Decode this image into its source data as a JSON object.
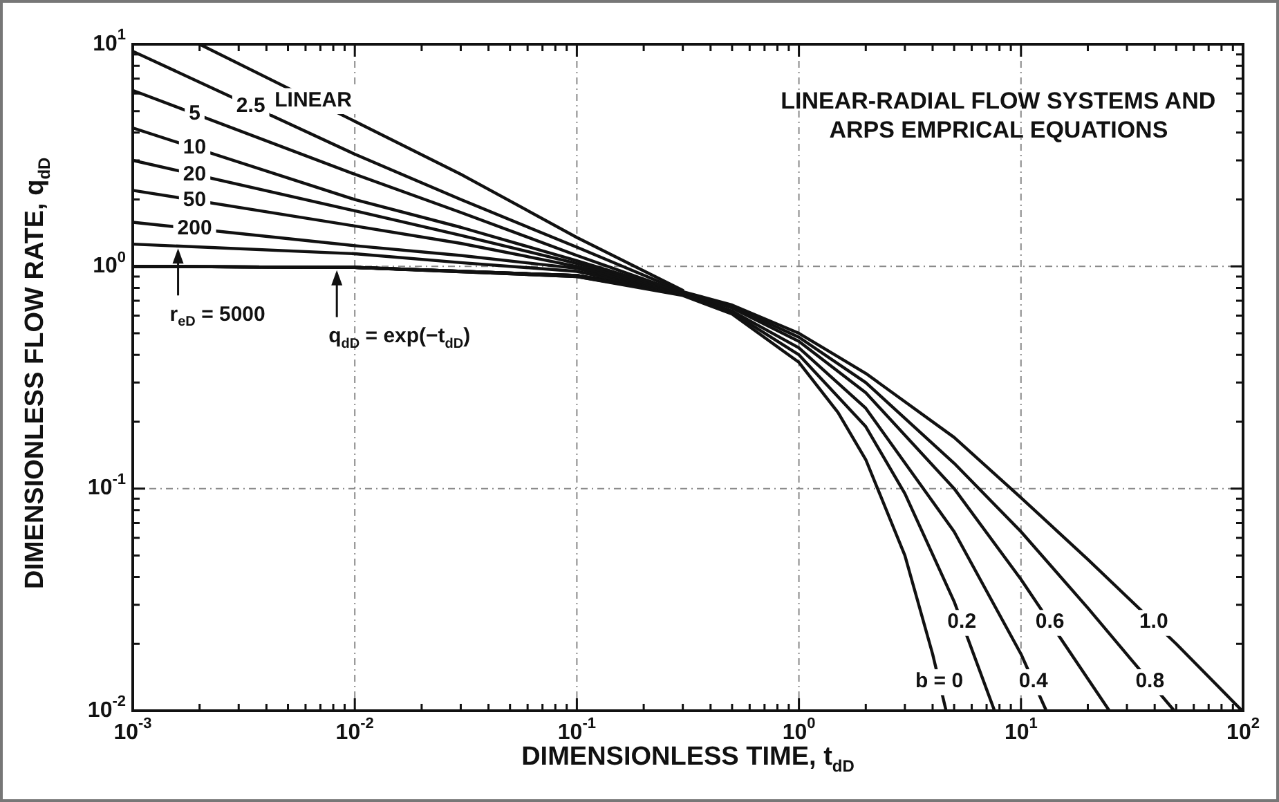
{
  "chart_data": {
    "type": "line",
    "title": "LINEAR-RADIAL FLOW SYSTEMS AND ARPS EMPRICAL EQUATIONS",
    "xlabel": "DIMENSIONLESS TIME, t$_{dD}$",
    "ylabel": "DIMENSIONLESS FLOW RATE, q$_{dD}$",
    "log": "xy",
    "grid": true,
    "legend": false,
    "marker": "none",
    "line_style": "solid",
    "xlim": [
      0.001,
      100
    ],
    "ylim": [
      0.01,
      10
    ],
    "xticks": [
      {
        "value": 0.001,
        "label": "10$^{-3}$"
      },
      {
        "value": 0.002,
        "label": null
      },
      {
        "value": 0.003,
        "label": null
      },
      {
        "value": 0.004,
        "label": null
      },
      {
        "value": 0.005,
        "label": null
      },
      {
        "value": 0.006,
        "label": null
      },
      {
        "value": 0.007,
        "label": null
      },
      {
        "value": 0.008,
        "label": null
      },
      {
        "value": 0.009,
        "label": null
      },
      {
        "value": 0.01,
        "label": "10$^{-2}$"
      },
      {
        "value": 0.02,
        "label": null
      },
      {
        "value": 0.03,
        "label": null
      },
      {
        "value": 0.04,
        "label": null
      },
      {
        "value": 0.05,
        "label": null
      },
      {
        "value": 0.06,
        "label": null
      },
      {
        "value": 0.07,
        "label": null
      },
      {
        "value": 0.08,
        "label": null
      },
      {
        "value": 0.09,
        "label": null
      },
      {
        "value": 0.1,
        "label": "10$^{-1}$"
      },
      {
        "value": 0.2,
        "label": null
      },
      {
        "value": 0.3,
        "label": null
      },
      {
        "value": 0.4,
        "label": null
      },
      {
        "value": 0.5,
        "label": null
      },
      {
        "value": 0.6,
        "label": null
      },
      {
        "value": 0.7,
        "label": null
      },
      {
        "value": 0.8,
        "label": null
      },
      {
        "value": 0.9,
        "label": null
      },
      {
        "value": 1,
        "label": "10$^{0}$"
      },
      {
        "value": 2,
        "label": null
      },
      {
        "value": 3,
        "label": null
      },
      {
        "value": 4,
        "label": null
      },
      {
        "value": 5,
        "label": null
      },
      {
        "value": 6,
        "label": null
      },
      {
        "value": 7,
        "label": null
      },
      {
        "value": 8,
        "label": null
      },
      {
        "value": 9,
        "label": null
      },
      {
        "value": 10,
        "label": "10$^{1}$"
      },
      {
        "value": 20,
        "label": null
      },
      {
        "value": 30,
        "label": null
      },
      {
        "value": 40,
        "label": null
      },
      {
        "value": 50,
        "label": null
      },
      {
        "value": 60,
        "label": null
      },
      {
        "value": 70,
        "label": null
      },
      {
        "value": 80,
        "label": null
      },
      {
        "value": 90,
        "label": null
      },
      {
        "value": 100,
        "label": "10$^{2}$"
      }
    ],
    "yticks": [
      {
        "value": 0.01,
        "label": "10$^{-2}$"
      },
      {
        "value": 0.02,
        "label": null
      },
      {
        "value": 0.03,
        "label": null
      },
      {
        "value": 0.04,
        "label": null
      },
      {
        "value": 0.05,
        "label": null
      },
      {
        "value": 0.06,
        "label": null
      },
      {
        "value": 0.07,
        "label": null
      },
      {
        "value": 0.08,
        "label": null
      },
      {
        "value": 0.09,
        "label": null
      },
      {
        "value": 0.1,
        "label": "10$^{-1}$"
      },
      {
        "value": 0.2,
        "label": null
      },
      {
        "value": 0.3,
        "label": null
      },
      {
        "value": 0.4,
        "label": null
      },
      {
        "value": 0.5,
        "label": null
      },
      {
        "value": 0.6,
        "label": null
      },
      {
        "value": 0.7,
        "label": null
      },
      {
        "value": 0.8,
        "label": null
      },
      {
        "value": 0.9,
        "label": null
      },
      {
        "value": 1,
        "label": "10$^{0}$"
      },
      {
        "value": 2,
        "label": null
      },
      {
        "value": 3,
        "label": null
      },
      {
        "value": 4,
        "label": null
      },
      {
        "value": 5,
        "label": null
      },
      {
        "value": 6,
        "label": null
      },
      {
        "value": 7,
        "label": null
      },
      {
        "value": 8,
        "label": null
      },
      {
        "value": 9,
        "label": null
      },
      {
        "value": 10,
        "label": "10$^{1}$"
      }
    ],
    "series": [
      {
        "name": "LINEAR",
        "color": "#111111",
        "x": [
          0.002,
          0.01,
          0.03,
          0.1,
          0.3
        ],
        "values": [
          10,
          4.5,
          2.6,
          1.35,
          0.78
        ]
      },
      {
        "name": "2.5",
        "color": "#111111",
        "x": [
          0.001,
          0.01,
          0.03,
          0.1,
          0.3
        ],
        "values": [
          9.3,
          3.2,
          2,
          1.22,
          0.77
        ]
      },
      {
        "name": "5",
        "color": "#111111",
        "x": [
          0.001,
          0.01,
          0.03,
          0.1,
          0.3
        ],
        "values": [
          6.2,
          2.6,
          1.75,
          1.12,
          0.76
        ]
      },
      {
        "name": "10",
        "color": "#111111",
        "x": [
          0.001,
          0.01,
          0.03,
          0.1,
          0.3
        ],
        "values": [
          4.2,
          2,
          1.5,
          1.06,
          0.76
        ]
      },
      {
        "name": "20",
        "color": "#111111",
        "x": [
          0.001,
          0.01,
          0.03,
          0.1,
          0.3
        ],
        "values": [
          3,
          1.78,
          1.38,
          1.03,
          0.75
        ]
      },
      {
        "name": "50",
        "color": "#111111",
        "x": [
          0.001,
          0.01,
          0.03,
          0.1,
          0.3
        ],
        "values": [
          2.2,
          1.52,
          1.27,
          1,
          0.75
        ]
      },
      {
        "name": "200",
        "color": "#111111",
        "x": [
          0.001,
          0.01,
          0.03,
          0.1,
          0.3
        ],
        "values": [
          1.58,
          1.24,
          1.12,
          0.98,
          0.75
        ]
      },
      {
        "color": "#111111",
        "x": [
          0.001,
          0.01,
          0.03,
          0.1,
          0.3
        ],
        "values": [
          1.26,
          1.14,
          1.04,
          0.95,
          0.75
        ]
      },
      {
        "name": "b = 0",
        "color": "#111111",
        "x": [
          0.001,
          0.01,
          0.1,
          0.3,
          0.5,
          1,
          1.5,
          2,
          3,
          4,
          4.6
        ],
        "values": [
          1,
          0.99,
          0.9,
          0.74,
          0.61,
          0.37,
          0.22,
          0.135,
          0.05,
          0.018,
          0.01
        ]
      },
      {
        "name": "0.2",
        "color": "#111111",
        "x": [
          0.001,
          0.01,
          0.1,
          0.3,
          0.5,
          1,
          2,
          3,
          5,
          7.6
        ],
        "values": [
          1,
          0.99,
          0.9,
          0.75,
          0.62,
          0.4,
          0.19,
          0.095,
          0.031,
          0.01
        ]
      },
      {
        "name": "0.4",
        "color": "#111111",
        "x": [
          0.001,
          0.01,
          0.1,
          0.3,
          0.5,
          1,
          2,
          5,
          10,
          13
        ],
        "values": [
          1,
          0.99,
          0.91,
          0.75,
          0.63,
          0.43,
          0.23,
          0.064,
          0.018,
          0.01
        ]
      },
      {
        "name": "0.6",
        "color": "#111111",
        "x": [
          0.001,
          0.01,
          0.1,
          0.3,
          0.5,
          1,
          2,
          5,
          10,
          25
        ],
        "values": [
          1,
          0.99,
          0.91,
          0.76,
          0.65,
          0.46,
          0.27,
          0.1,
          0.039,
          0.01
        ]
      },
      {
        "name": "0.8",
        "color": "#111111",
        "x": [
          0.001,
          0.01,
          0.1,
          0.3,
          0.5,
          1,
          2,
          5,
          10,
          20,
          49
        ],
        "values": [
          1,
          0.99,
          0.91,
          0.76,
          0.66,
          0.48,
          0.3,
          0.13,
          0.064,
          0.029,
          0.01
        ]
      },
      {
        "name": "1.0",
        "color": "#111111",
        "x": [
          0.001,
          0.01,
          0.1,
          0.3,
          0.5,
          1,
          2,
          5,
          10,
          20,
          50,
          99
        ],
        "values": [
          1,
          0.99,
          0.91,
          0.77,
          0.67,
          0.5,
          0.33,
          0.17,
          0.091,
          0.048,
          0.02,
          0.01
        ]
      }
    ],
    "annotations": [
      {
        "text": "r$_{eD}$ = 5000",
        "x": 0.0016,
        "y": 1.24
      },
      {
        "text": "q$_{dD}$ = exp(−t$_{dD}$)",
        "x": 0.0083,
        "y": 0.99
      }
    ]
  }
}
